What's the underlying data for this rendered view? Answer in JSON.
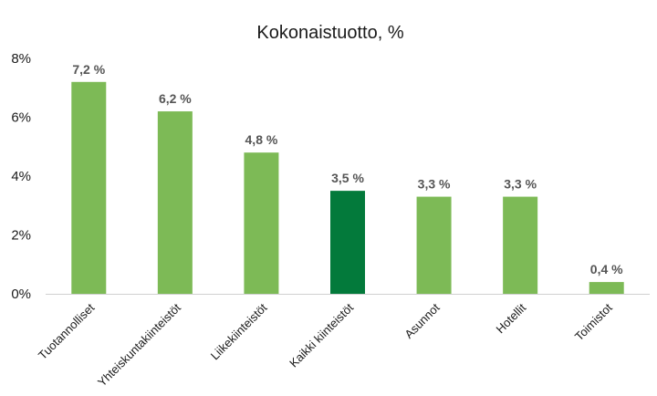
{
  "chart_data": {
    "type": "bar",
    "title": "Kokonaistuotto, %",
    "categories": [
      "Tuotannolliset",
      "Yhteiskuntakiinteistöt",
      "Liikekiinteistöt",
      "Kaikki kiinteistöt",
      "Asunnot",
      "Hotellit",
      "Toimistot"
    ],
    "values": [
      7.2,
      6.2,
      4.8,
      3.5,
      3.3,
      3.3,
      0.4
    ],
    "data_labels": [
      "7,2 %",
      "6,2 %",
      "4,8 %",
      "3,5 %",
      "3,3 %",
      "3,3 %",
      "0,4 %"
    ],
    "y_ticks": [
      0,
      2,
      4,
      6,
      8
    ],
    "y_tick_labels": [
      "0%",
      "2%",
      "4%",
      "6%",
      "8%"
    ],
    "ylim": [
      0,
      8
    ],
    "grid": false,
    "legend": "none",
    "colors": {
      "bar": "#7dba56",
      "highlight": "#037a3b",
      "highlight_category": "Kaikki kiinteistöt",
      "axis": "#d0d0d0"
    }
  }
}
